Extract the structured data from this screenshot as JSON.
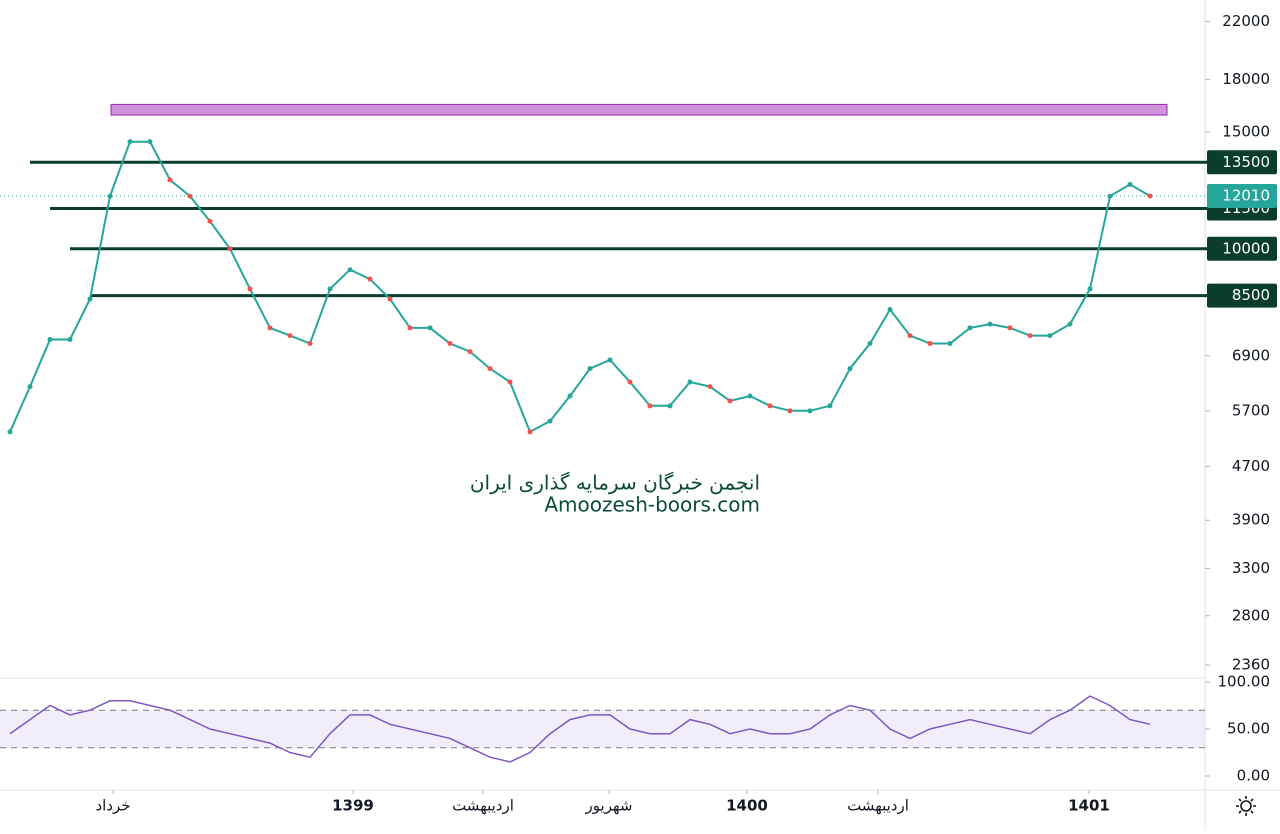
{
  "chart_data": {
    "type": "line",
    "log_scale": true,
    "color": "#26a69a",
    "ylim": [
      2280,
      23700
    ],
    "yticks": [
      22000,
      18000,
      15000,
      6900,
      5700,
      4700,
      3900,
      3300,
      2800,
      2360
    ],
    "xlim": [
      0,
      60.25
    ],
    "xticks": [
      {
        "value": 5.65,
        "label": "خرداد"
      },
      {
        "value": 17.65,
        "label": "1399"
      },
      {
        "value": 24.15,
        "label": "اردیبهشت"
      },
      {
        "value": 30.45,
        "label": "شهریور"
      },
      {
        "value": 37.35,
        "label": "1400"
      },
      {
        "value": 43.9,
        "label": "اردیبهشت"
      },
      {
        "value": 54.45,
        "label": "1401"
      }
    ],
    "values": [
      5300,
      6200,
      7300,
      7300,
      8400,
      12000,
      14500,
      14500,
      12700,
      12000,
      11000,
      10000,
      8700,
      7600,
      7400,
      7200,
      8700,
      9300,
      9000,
      8400,
      7600,
      7600,
      7200,
      7000,
      6600,
      6300,
      5300,
      5500,
      6000,
      6600,
      6800,
      6300,
      5800,
      5800,
      6300,
      6200,
      5900,
      6000,
      5800,
      5700,
      5700,
      5800,
      6600,
      7200,
      8100,
      7400,
      7200,
      7200,
      7600,
      7700,
      7600,
      7400,
      7400,
      7700,
      8700,
      12000,
      12500,
      12010
    ],
    "levels": [
      13500,
      11500,
      10000,
      8500
    ],
    "zone": [
      15900,
      16500
    ],
    "last_price": 12010,
    "watermark": [
      "انجمن خبرگان سرمایه گذاری ایران",
      "Amoozesh-boors.com"
    ],
    "rsi": {
      "ylim": [
        0,
        100
      ],
      "yticks": [
        {
          "value": 100,
          "label": "100.00"
        },
        {
          "value": 50,
          "label": "50.00"
        },
        {
          "value": 0,
          "label": "0.00"
        }
      ],
      "bands": [
        70,
        30
      ],
      "color": "#7e57c2",
      "values": [
        45,
        60,
        75,
        65,
        70,
        80,
        80,
        75,
        70,
        60,
        50,
        45,
        40,
        35,
        25,
        20,
        45,
        65,
        65,
        55,
        50,
        45,
        40,
        30,
        20,
        15,
        25,
        45,
        60,
        65,
        65,
        50,
        45,
        45,
        60,
        55,
        45,
        50,
        45,
        45,
        50,
        65,
        75,
        70,
        50,
        40,
        50,
        55,
        60,
        55,
        50,
        45,
        60,
        70,
        85,
        75,
        60,
        55
      ]
    }
  }
}
